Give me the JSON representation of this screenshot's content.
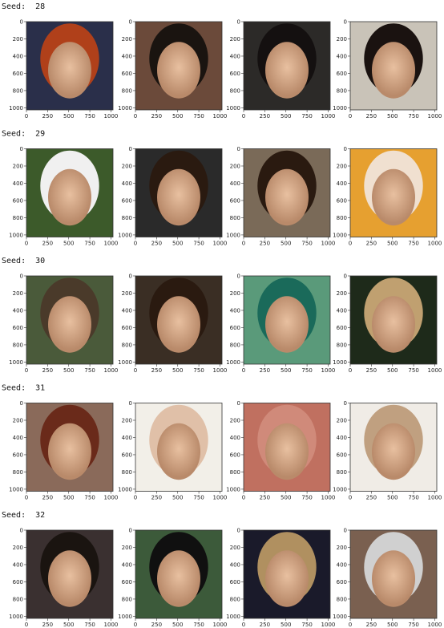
{
  "seed_label": "Seed:",
  "seeds": [
    28,
    29,
    30,
    31,
    32
  ],
  "images_per_seed": 4,
  "axes": {
    "xlim": [
      0,
      1024
    ],
    "ylim": [
      0,
      1024
    ],
    "xticks": [
      0,
      250,
      500,
      750,
      1000
    ],
    "yticks": [
      0,
      200,
      400,
      600,
      800,
      1000
    ]
  }
}
